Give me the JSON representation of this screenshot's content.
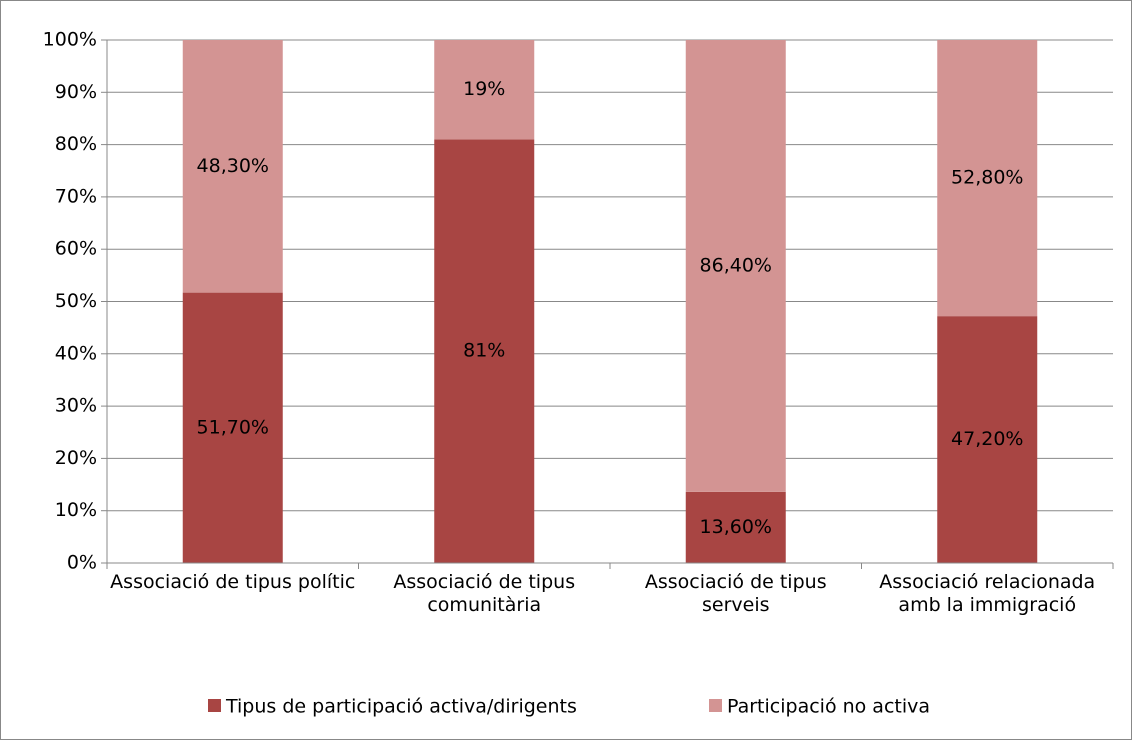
{
  "chart_data": {
    "type": "stacked_bar",
    "categories": [
      "Associació de tipus polític",
      "Associació de tipus comunitària",
      "Associació de tipus serveis",
      "Associació relacionada amb la immigració"
    ],
    "series": [
      {
        "name": "Tipus de participació activa/dirigents",
        "color": "#a84543",
        "values": [
          51.7,
          81,
          13.6,
          47.2
        ],
        "value_labels": [
          "51,70%",
          "81%",
          "13,60%",
          "47,20%"
        ]
      },
      {
        "name": "Participació no activa",
        "color": "#d39493",
        "values": [
          48.3,
          19,
          86.4,
          52.8
        ],
        "value_labels": [
          "48,30%",
          "19%",
          "86,40%",
          "52,80%"
        ]
      }
    ],
    "ylim": [
      0,
      100
    ],
    "yticks": [
      {
        "value": 0,
        "label": "0%"
      },
      {
        "value": 10,
        "label": "10%"
      },
      {
        "value": 20,
        "label": "20%"
      },
      {
        "value": 30,
        "label": "30%"
      },
      {
        "value": 40,
        "label": "40%"
      },
      {
        "value": 50,
        "label": "50%"
      },
      {
        "value": 60,
        "label": "60%"
      },
      {
        "value": 70,
        "label": "70%"
      },
      {
        "value": 80,
        "label": "80%"
      },
      {
        "value": 90,
        "label": "90%"
      },
      {
        "value": 100,
        "label": "100%"
      }
    ],
    "grid": true,
    "legend": "bottom"
  }
}
